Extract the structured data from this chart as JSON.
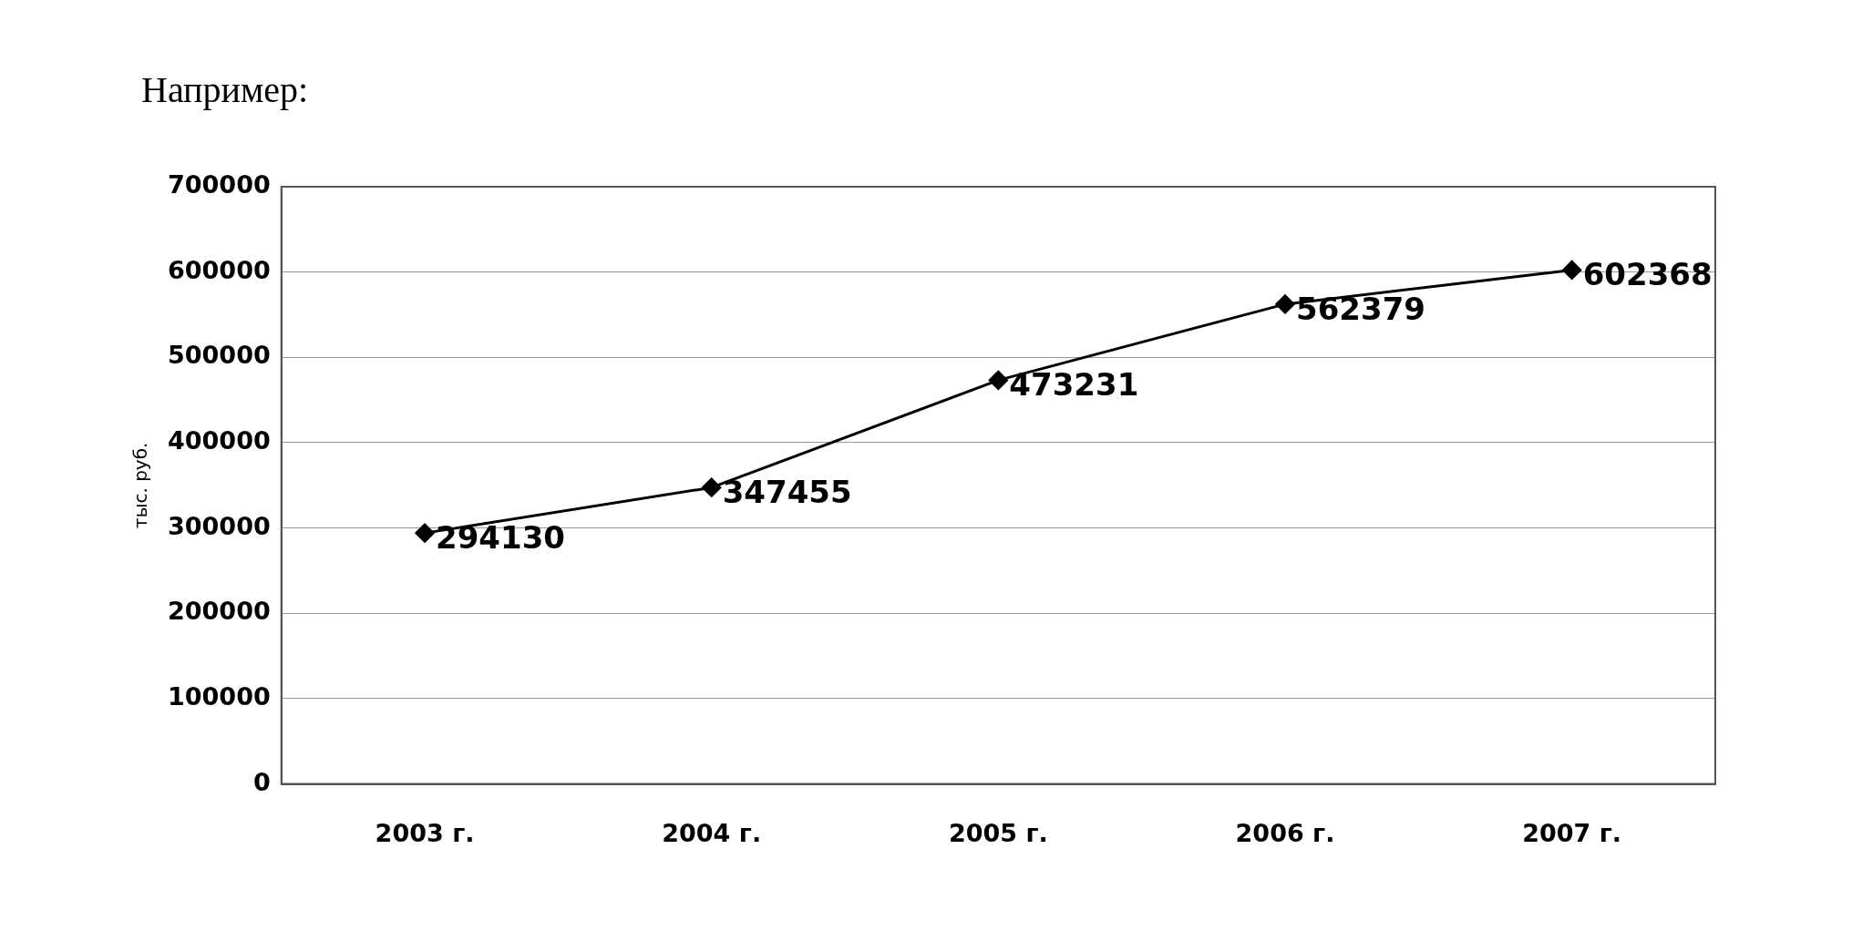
{
  "chart_data": {
    "type": "line",
    "title": "Например:",
    "ylabel": "тыс. руб.",
    "categories": [
      "2003 г.",
      "2004 г.",
      "2005 г.",
      "2006 г.",
      "2007 г."
    ],
    "series": [
      {
        "color": "#000000",
        "values": [
          294130,
          347455,
          473231,
          562379,
          602368
        ]
      }
    ],
    "ylim": [
      0,
      700000
    ],
    "yticks": [
      0,
      100000,
      200000,
      300000,
      400000,
      500000,
      600000,
      700000
    ],
    "grid": "y",
    "legend": false,
    "marker": "diamond",
    "line_style": "solid",
    "data_labels": true
  }
}
